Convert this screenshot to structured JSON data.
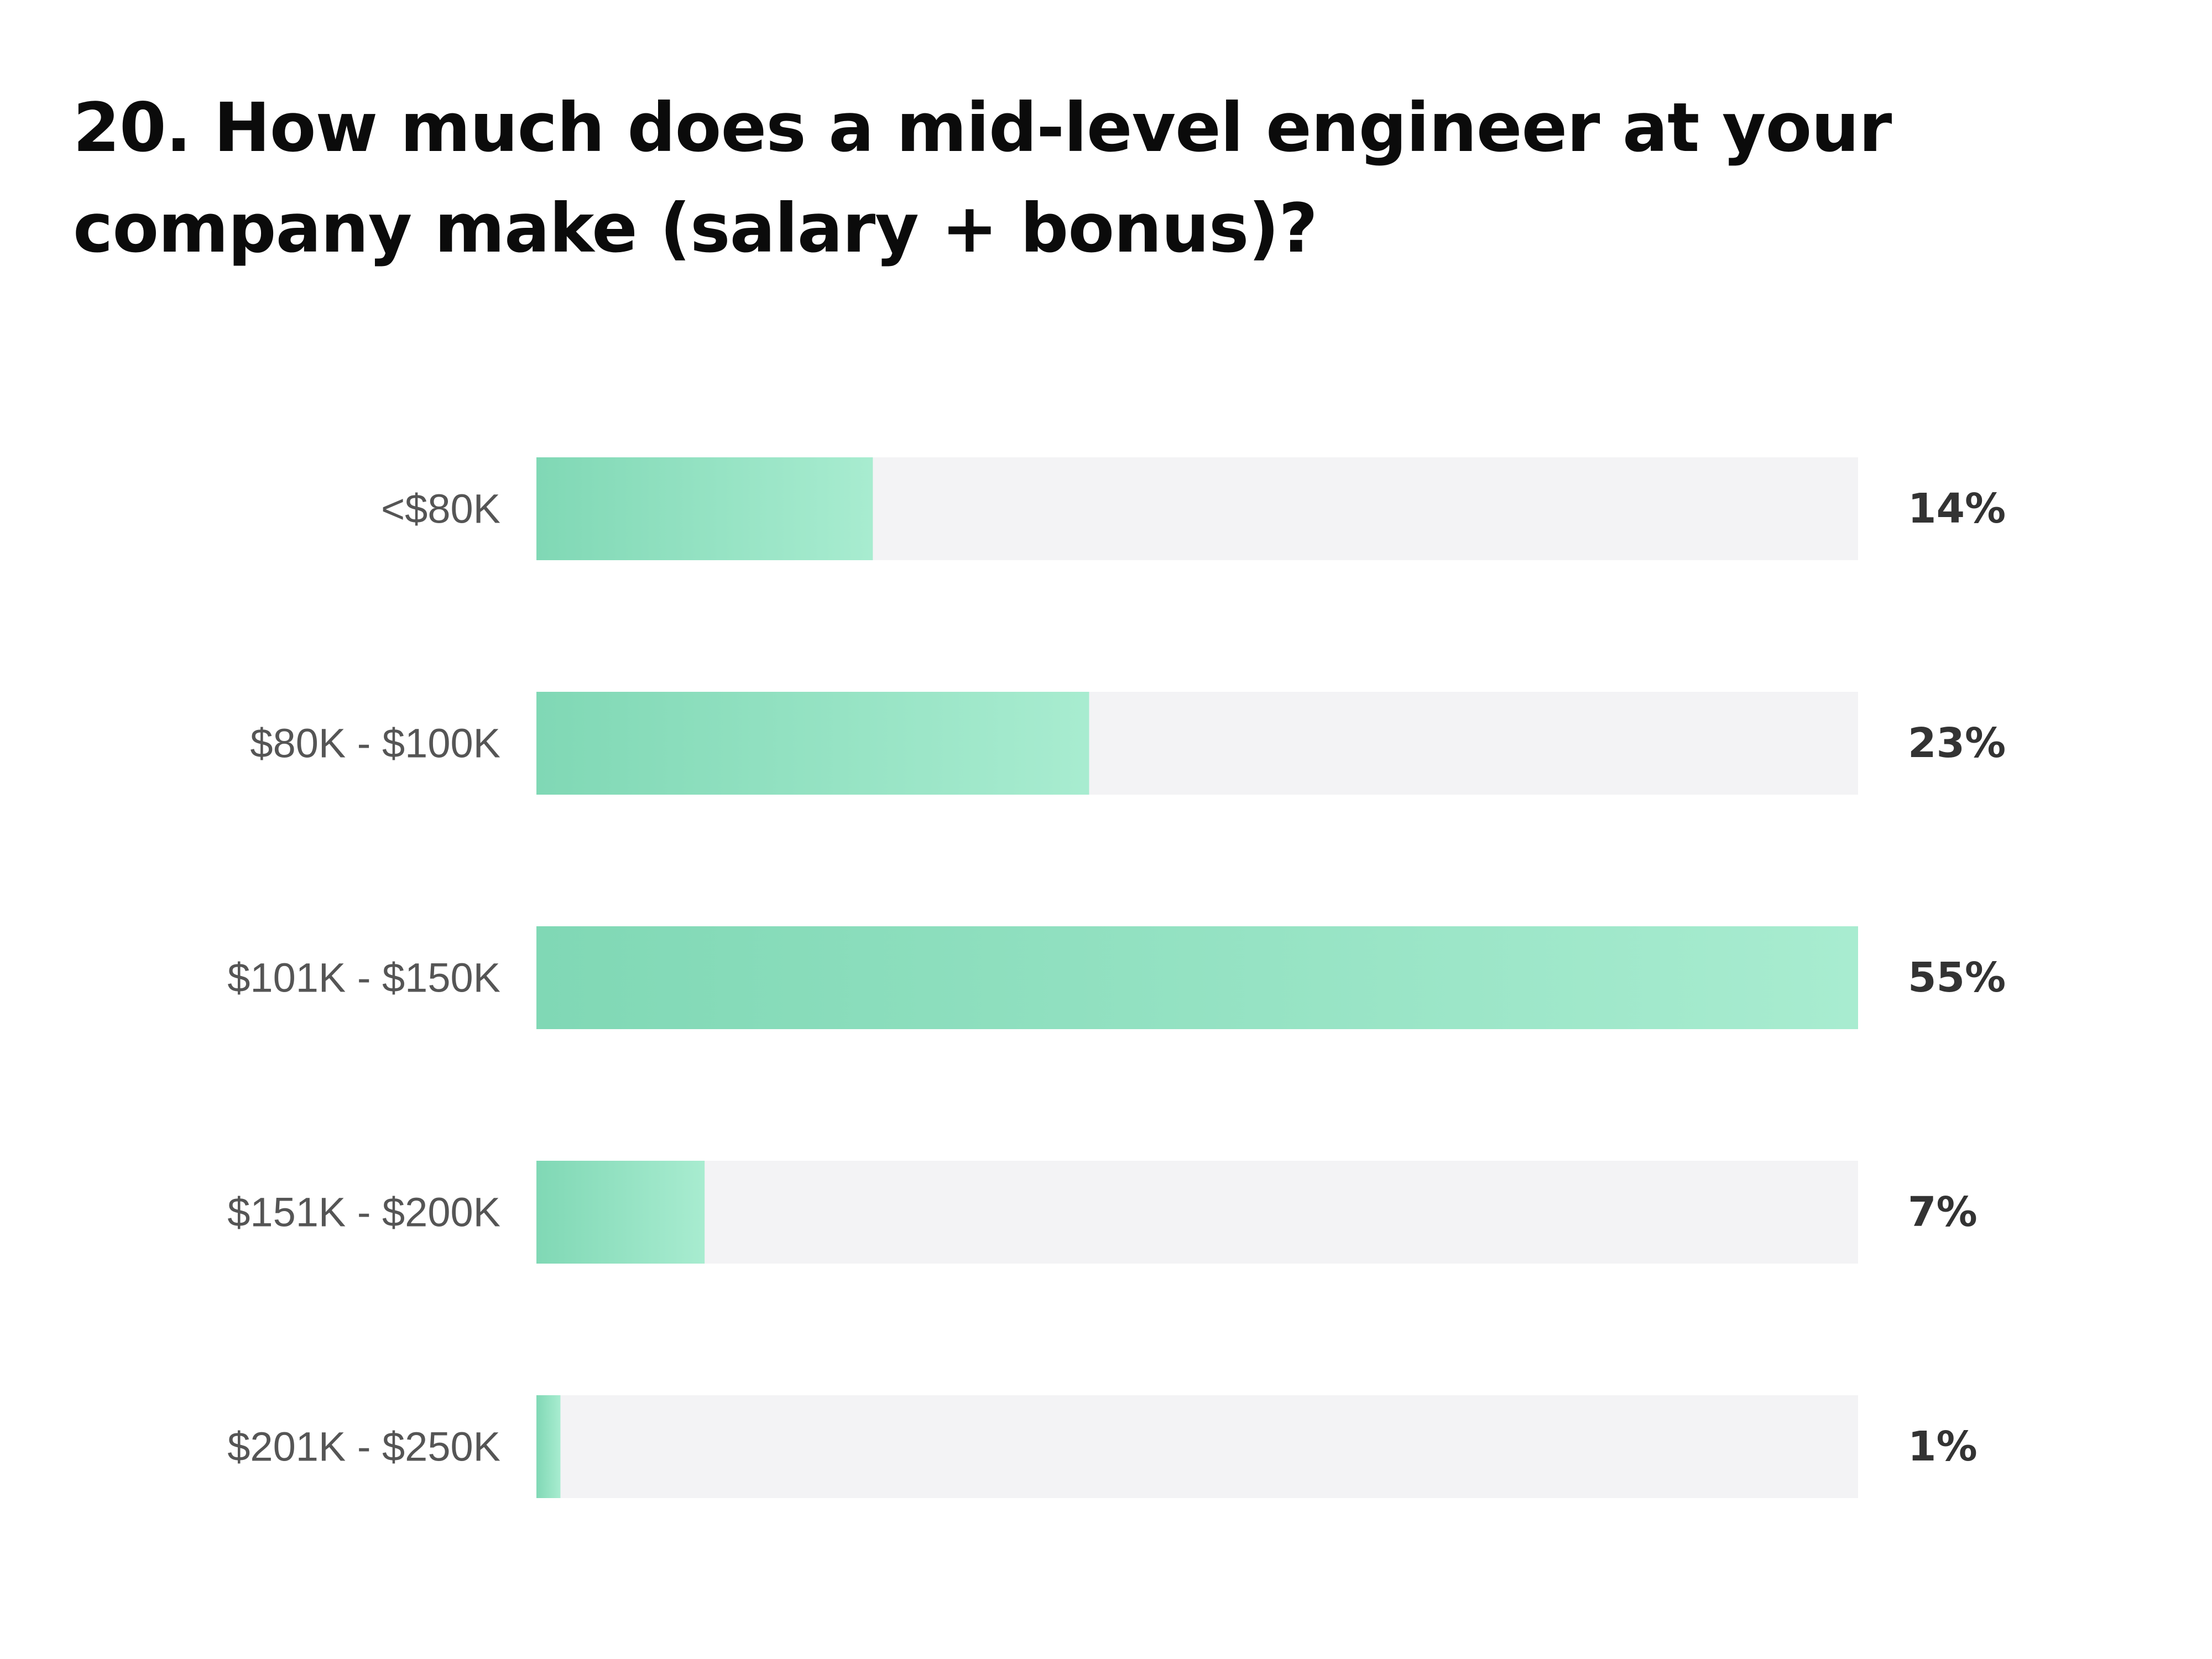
{
  "chart_data": {
    "type": "bar",
    "orientation": "horizontal",
    "title": "20. How much does a mid-level engineer at your company make (salary + bonus)?",
    "categories": [
      "<$80K",
      "$80K - $100K",
      "$101K - $150K",
      "$151K - $200K",
      "$201K - $250K"
    ],
    "values": [
      14,
      23,
      55,
      7,
      1
    ],
    "value_labels": [
      "14%",
      "23%",
      "55%",
      "7%",
      "1%"
    ],
    "xlim": [
      0,
      55
    ],
    "xlabel": "",
    "ylabel": "",
    "grid": false,
    "legend": "none",
    "colors": {
      "bar_start": "#80d8b5",
      "bar_end": "#a8ecd0",
      "track": "#f3f3f5",
      "category_text": "#555555",
      "value_text": "#333333",
      "title_text": "#0b0b0b"
    }
  }
}
